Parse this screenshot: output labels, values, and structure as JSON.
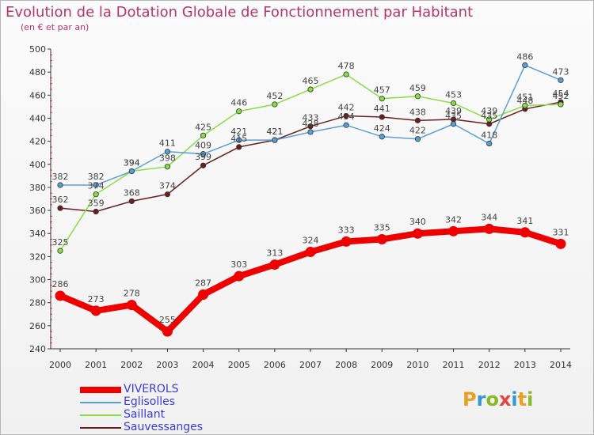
{
  "header": {
    "title": "Evolution de la Dotation Globale de Fonctionnement par Habitant",
    "subtitle": "(en € et par an)"
  },
  "logo": {
    "text": "Proxiti",
    "colors": [
      "#e8a023",
      "#3399cc",
      "#88bb22",
      "#e04444",
      "#3399cc",
      "#e8a023",
      "#88bb22"
    ]
  },
  "chart_data": {
    "type": "line",
    "title": "Evolution de la Dotation Globale de Fonctionnement par Habitant",
    "subtitle": "(en € et par an)",
    "x": [
      "2000",
      "2001",
      "2002",
      "2003",
      "2004",
      "2005",
      "2006",
      "2007",
      "2008",
      "2009",
      "2010",
      "2011",
      "2012",
      "2013",
      "2014"
    ],
    "ylim": [
      240,
      500
    ],
    "yticks": [
      240,
      260,
      280,
      300,
      320,
      340,
      360,
      380,
      400,
      420,
      440,
      460,
      480,
      500
    ],
    "grid": false,
    "legend_position": "bottom-left",
    "series": [
      {
        "name": "VIVEROLS",
        "color": "#ee0000",
        "values": [
          286,
          273,
          278,
          255,
          287,
          303,
          313,
          324,
          333,
          335,
          340,
          342,
          344,
          341,
          331
        ]
      },
      {
        "name": "Eglisolles",
        "color": "#5a9fd4",
        "values": [
          382,
          382,
          394,
          411,
          409,
          421,
          421,
          428,
          434,
          424,
          422,
          435,
          418,
          486,
          473
        ]
      },
      {
        "name": "Saillant",
        "color": "#88dd44",
        "values": [
          325,
          374,
          394,
          398,
          425,
          446,
          452,
          465,
          478,
          457,
          459,
          453,
          439,
          451,
          452
        ]
      },
      {
        "name": "Sauvessanges",
        "color": "#6b1e1e",
        "values": [
          362,
          359,
          368,
          374,
          399,
          415,
          421,
          433,
          442,
          441,
          438,
          439,
          435,
          448,
          454
        ]
      }
    ]
  }
}
